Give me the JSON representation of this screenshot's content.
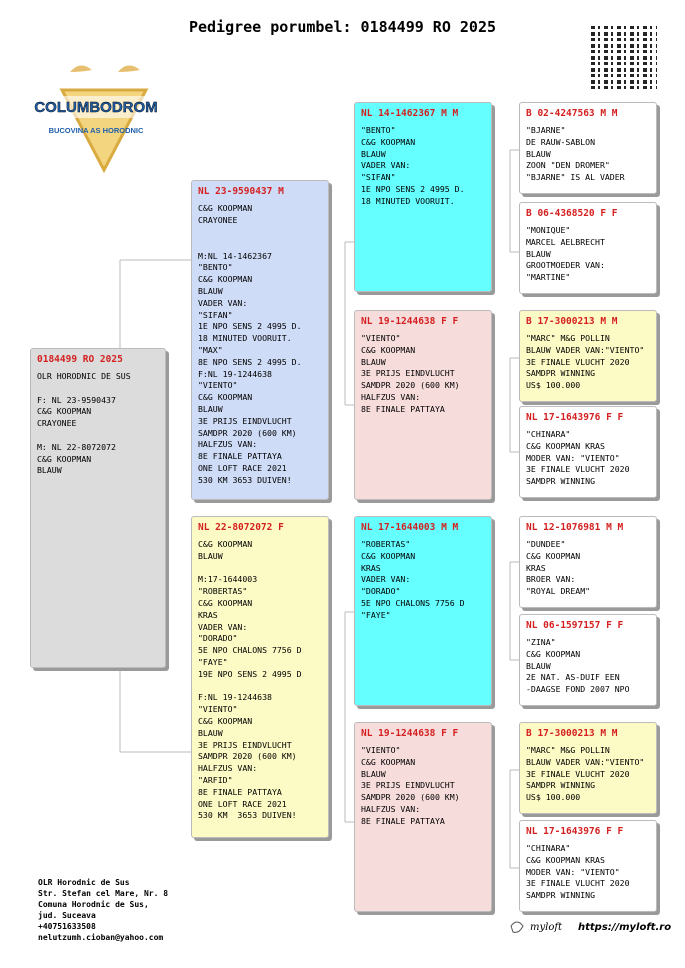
{
  "header": {
    "title": "Pedigree porumbel: 0184499 RO 2025"
  },
  "logo": {
    "name": "COLUMBODROM",
    "tagline": "BUCOVINA AS HORODNIC"
  },
  "boxes": [
    {
      "id": "0184499 RO 2025",
      "paragraphs": [
        [
          "OLR HORODNIC DE SUS"
        ],
        [
          "F: NL 23-9590437",
          "C&G KOOPMAN",
          "CRAYONEE"
        ],
        [
          "M: NL 22-8072072",
          "C&G KOOPMAN",
          "BLAUW"
        ]
      ]
    },
    {
      "id": "NL 23-9590437 M",
      "paragraphs": [
        [
          "C&G KOOPMAN",
          "CRAYONEE"
        ],
        [
          "M:NL 14-1462367",
          "\"BENTO\"",
          "C&G KOOPMAN",
          "BLAUW",
          "VADER VAN:",
          "\"SIFAN\"",
          "1E NPO SENS 2 4995 D.",
          "18 MINUTED VOORUIT.",
          "\"MAX\"",
          "8E NPO SENS 2 4995 D.",
          "F:NL 19-1244638",
          "\"VIENTO\"",
          "C&G KOOPMAN",
          "BLAUW",
          "3E PRIJS EINDVLUCHT",
          "SAMDPR 2020 (600 KM)",
          "HALFZUS VAN:",
          "8E FINALE PATTAYA",
          "ONE LOFT RACE 2021",
          "530 KM 3653 DUIVEN!"
        ]
      ]
    },
    {
      "id": "NL 22-8072072 F",
      "paragraphs": [
        [
          "C&G KOOPMAN",
          "BLAUW"
        ],
        [
          "M:17-1644003",
          "\"ROBERTAS\"",
          "C&G KOOPMAN",
          "KRAS",
          "VADER VAN:",
          "\"DORADO\"",
          "5E NPO CHALONS 7756 D",
          "\"FAYE\"",
          "19E NPO SENS 2 4995 D"
        ],
        [
          "F:NL 19-1244638",
          "\"VIENTO\"",
          "C&G KOOPMAN",
          "BLAUW",
          "3E PRIJS EINDVLUCHT",
          "SAMDPR 2020 (600 KM)",
          "HALFZUS VAN:",
          "\"ARFID\"",
          "8E FINALE PATTAYA",
          "ONE LOFT RACE 2021",
          "530 KM  3653 DUIVEN!"
        ]
      ]
    },
    {
      "id": "NL 14-1462367 M M",
      "paragraphs": [
        [
          "\"BENTO\"",
          "C&G KOOPMAN",
          "BLAUW",
          "VADER VAN:",
          "\"SIFAN\"",
          "1E NPO SENS 2 4995 D.",
          "18 MINUTED VOORUIT."
        ]
      ]
    },
    {
      "id": "NL 19-1244638 F F",
      "paragraphs": [
        [
          "\"VIENTO\"",
          "C&G KOOPMAN",
          "BLAUW",
          "3E PRIJS EINDVLUCHT",
          "SAMDPR 2020 (600 KM)",
          "HALFZUS VAN:",
          "8E FINALE PATTAYA"
        ]
      ]
    },
    {
      "id": "NL 17-1644003 M M",
      "paragraphs": [
        [
          "\"ROBERTAS\"",
          "C&G KOOPMAN",
          "KRAS",
          "VADER VAN:",
          "\"DORADO\"",
          "5E NPO CHALONS 7756 D",
          "\"FAYE\""
        ]
      ]
    },
    {
      "id": "NL 19-1244638 F F",
      "paragraphs": [
        [
          "\"VIENTO\"",
          "C&G KOOPMAN",
          "BLAUW",
          "3E PRIJS EINDVLUCHT",
          "SAMDPR 2020 (600 KM)",
          "HALFZUS VAN:",
          "8E FINALE PATTAYA"
        ]
      ]
    },
    {
      "id": "B 02-4247563 M M",
      "paragraphs": [
        [
          "\"BJARNE\"",
          "DE RAUW-SABLON",
          "BLAUW",
          "ZOON \"DEN DROMER\"",
          "\"BJARNE\" IS AL VADER"
        ]
      ]
    },
    {
      "id": "B 06-4368520 F F",
      "paragraphs": [
        [
          "\"MONIQUE\"",
          "MARCEL AELBRECHT",
          "BLAUW",
          "GROOTMOEDER VAN:",
          "\"MARTINE\""
        ]
      ]
    },
    {
      "id": "B 17-3000213 M M",
      "paragraphs": [
        [
          "\"MARC\" M&G POLLIN",
          "BLAUW VADER VAN:\"VIENTO\"",
          "3E FINALE VLUCHT 2020",
          "SAMDPR WINNING",
          "US$ 100.000"
        ]
      ]
    },
    {
      "id": "NL 17-1643976 F F",
      "paragraphs": [
        [
          "\"CHINARA\"",
          "C&G KOOPMAN KRAS",
          "MODER VAN: \"VIENTO\"",
          "3E FINALE VLUCHT 2020",
          "SAMDPR WINNING"
        ]
      ]
    },
    {
      "id": "NL 12-1076981 M M",
      "paragraphs": [
        [
          "\"DUNDEE\"",
          "C&G KOOPMAN",
          "KRAS",
          "BROER VAN:",
          "\"ROYAL DREAM\""
        ]
      ]
    },
    {
      "id": "NL 06-1597157 F F",
      "paragraphs": [
        [
          "\"ZINA\"",
          "C&G KOOPMAN",
          "BLAUW",
          "2E NAT. AS-DUIF EEN",
          "-DAAGSE FOND 2007 NPO"
        ]
      ]
    },
    {
      "id": "B 17-3000213 M M",
      "paragraphs": [
        [
          "\"MARC\" M&G POLLIN",
          "BLAUW VADER VAN:\"VIENTO\"",
          "3E FINALE VLUCHT 2020",
          "SAMDPR WINNING",
          "US$ 100.000"
        ]
      ]
    },
    {
      "id": "NL 17-1643976 F F",
      "paragraphs": [
        [
          "\"CHINARA\"",
          "C&G KOOPMAN KRAS",
          "MODER VAN: \"VIENTO\"",
          "3E FINALE VLUCHT 2020",
          "SAMDPR WINNING"
        ]
      ]
    }
  ],
  "footer": {
    "address": [
      "OLR Horodnic de Sus",
      "Str. Stefan cel Mare, Nr. 8",
      "Comuna Horodnic de Sus,",
      "jud. Suceava",
      "+40751633508",
      "nelutzumh.cioban@yahoo.com"
    ],
    "brand": "myloft",
    "url": "https://myloft.ro"
  }
}
